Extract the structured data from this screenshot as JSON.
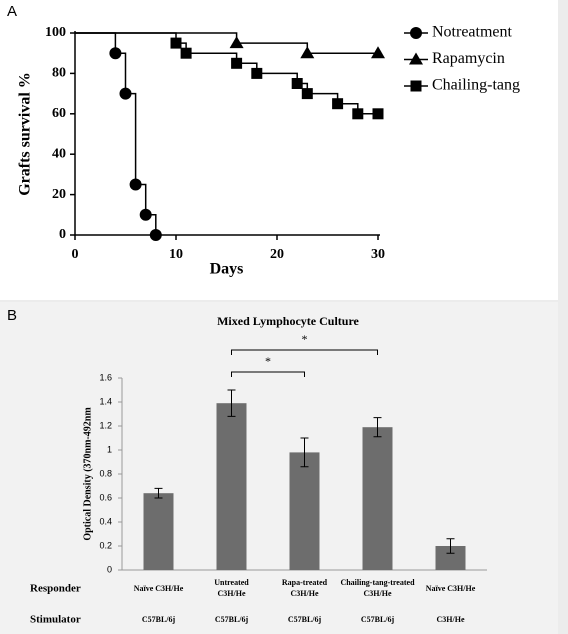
{
  "chart_data": [
    {
      "type": "step",
      "panel": "A",
      "xlabel": "Days",
      "ylabel": "Grafts survival %",
      "xlim": [
        0,
        30
      ],
      "xticks": [
        0,
        10,
        20,
        30
      ],
      "ylim": [
        0,
        100
      ],
      "yticks": [
        0,
        20,
        40,
        60,
        80,
        100
      ],
      "legend": "right",
      "series": [
        {
          "name": "Notreatment",
          "marker": "circle",
          "color": "#000000",
          "x": [
            0,
            4,
            5,
            6,
            7,
            8
          ],
          "values": [
            100,
            90,
            70,
            25,
            10,
            0
          ]
        },
        {
          "name": "Rapamycin",
          "marker": "triangle",
          "color": "#000000",
          "x": [
            0,
            16,
            23,
            30
          ],
          "values": [
            100,
            95,
            90,
            90
          ]
        },
        {
          "name": "Chailing-tang",
          "marker": "square",
          "color": "#000000",
          "x": [
            0,
            10,
            11,
            16,
            18,
            22,
            23,
            26,
            28,
            30
          ],
          "values": [
            100,
            95,
            90,
            85,
            80,
            75,
            70,
            65,
            60,
            60
          ]
        }
      ]
    },
    {
      "type": "bar",
      "panel": "B",
      "title": "Mixed Lymphocyte Culture",
      "ylabel": "Optical Density (370nm-492nm",
      "ylim": [
        0,
        1.6
      ],
      "yticks": [
        0,
        0.2,
        0.4,
        0.6,
        0.8,
        1,
        1.2,
        1.4,
        1.6
      ],
      "color": "#6d6d6d",
      "row_labels": [
        "Responder",
        "Stimulator"
      ],
      "categories": [
        [
          "Naïve C3H/He"
        ],
        [
          "Untreated",
          "C3H/He"
        ],
        [
          "Rapa-treated",
          "C3H/He"
        ],
        [
          "Chailing-tang-treated",
          "C3H/He"
        ],
        [
          "Naïve C3H/He"
        ]
      ],
      "stimulator": [
        "C57BL/6j",
        "C57BL/6j",
        "C57BL/6j",
        "C57BL/6j",
        "C3H/He"
      ],
      "values": [
        0.64,
        1.39,
        0.98,
        1.19,
        0.2
      ],
      "errors": [
        0.04,
        0.11,
        0.12,
        0.08,
        0.06
      ],
      "annotations": [
        {
          "text": "*",
          "from": 1,
          "to": 2
        },
        {
          "text": "*",
          "from": 1,
          "to": 3
        }
      ]
    }
  ]
}
